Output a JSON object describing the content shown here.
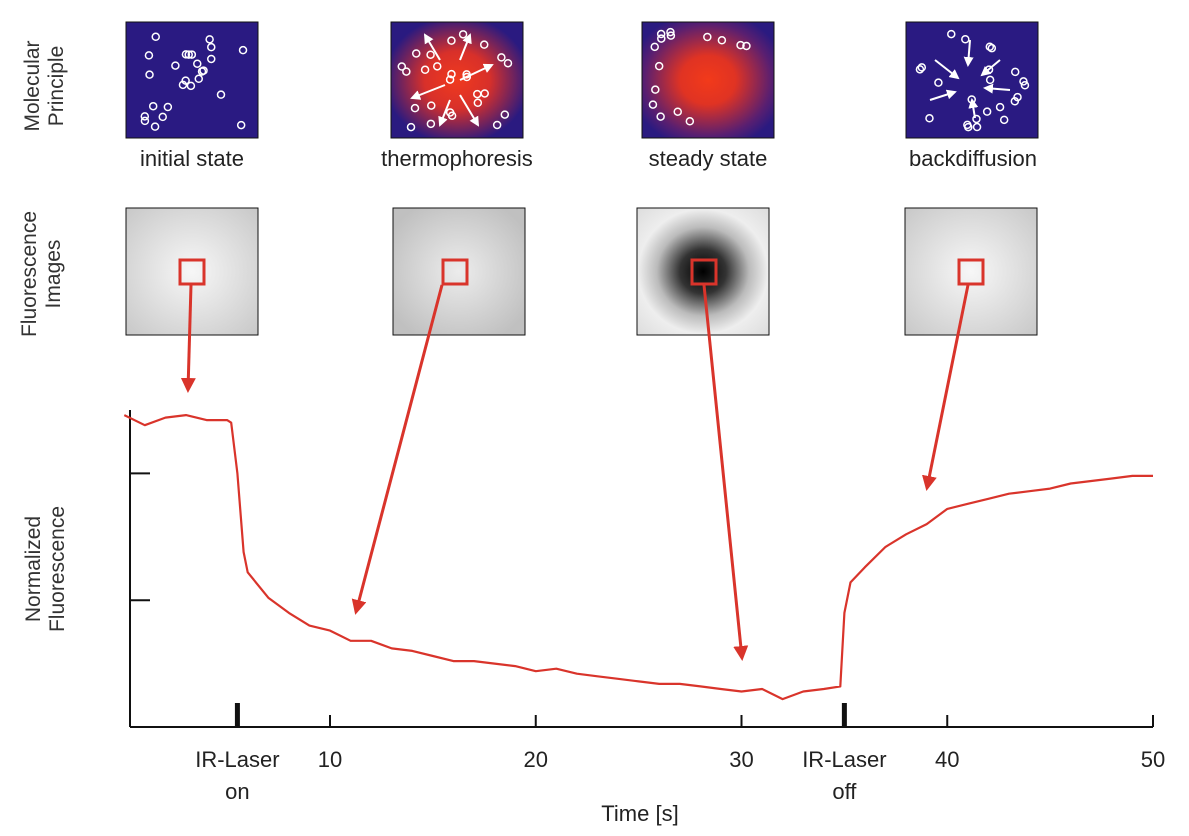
{
  "row_labels": [
    "Molecular Principle",
    "Fluorescence Images"
  ],
  "panels": [
    "initial state",
    "thermophoresis",
    "steady state",
    "backdiffusion"
  ],
  "chart_data": {
    "type": "line",
    "y_label": "Normalized Fluorescence",
    "x_label": "Time [s]",
    "x": [
      0,
      1,
      2,
      3,
      4,
      5,
      5.2,
      5.5,
      5.8,
      6,
      7,
      8,
      9,
      10,
      11,
      12,
      13,
      14,
      15,
      16,
      17,
      18,
      19,
      20,
      21,
      22,
      23,
      24,
      25,
      26,
      27,
      28,
      29,
      30,
      31,
      32,
      33,
      34,
      34.8,
      35,
      35.3,
      36,
      37,
      38,
      39,
      40,
      41,
      42,
      43,
      44,
      45,
      46,
      47,
      48,
      49,
      50
    ],
    "series": [
      {
        "color": "#d9342b",
        "values": [
          0.973,
          0.969,
          0.972,
          0.973,
          0.971,
          0.971,
          0.97,
          0.95,
          0.919,
          0.911,
          0.901,
          0.895,
          0.89,
          0.888,
          0.884,
          0.884,
          0.881,
          0.88,
          0.878,
          0.876,
          0.876,
          0.875,
          0.874,
          0.872,
          0.873,
          0.871,
          0.87,
          0.869,
          0.868,
          0.867,
          0.867,
          0.866,
          0.865,
          0.864,
          0.865,
          0.861,
          0.864,
          0.865,
          0.866,
          0.895,
          0.907,
          0.913,
          0.921,
          0.926,
          0.93,
          0.936,
          0.938,
          0.94,
          0.942,
          0.943,
          0.944,
          0.946,
          0.947,
          0.948,
          0.949,
          0.949
        ]
      }
    ],
    "xlim": [
      0,
      50
    ],
    "xticks": [
      {
        "value": 5.5,
        "label": "IR-Laser on"
      },
      10,
      20,
      30,
      {
        "value": 35,
        "label": "IR-Laser off"
      },
      40,
      50
    ],
    "ylim": [
      0.85,
      0.975
    ],
    "yticks": [
      0.9,
      0.95
    ]
  }
}
